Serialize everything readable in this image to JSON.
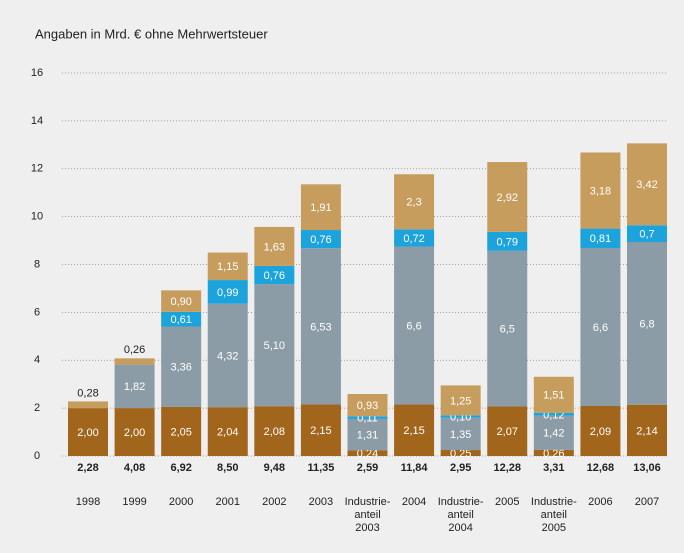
{
  "chart_data": {
    "type": "stacked_bar",
    "title": "Angaben in Mrd. € ohne Mehrwertsteuer",
    "categories": [
      "1998",
      "1999",
      "2000",
      "2001",
      "2002",
      "2003",
      "Industrie-\nanteil\n2003",
      "2004",
      "Industrie-\nanteil\n2004",
      "2005",
      "Industrie-\nanteil\n2005",
      "2006",
      "2007"
    ],
    "series": [
      {
        "color": "#a1651c",
        "values": [
          2.0,
          2.0,
          2.05,
          2.04,
          2.08,
          2.15,
          0.24,
          2.15,
          0.25,
          2.07,
          0.26,
          2.09,
          2.14
        ],
        "value_labels": [
          "2,00",
          "2,00",
          "2,05",
          "2,04",
          "2,08",
          "2,15",
          "0,24",
          "2,15",
          "0,25",
          "2,07",
          "0,26",
          "2,09",
          "2,14"
        ]
      },
      {
        "color": "#8c9ca6",
        "values": [
          null,
          1.82,
          3.36,
          4.32,
          5.1,
          6.53,
          1.31,
          6.6,
          1.35,
          6.5,
          1.42,
          6.6,
          6.8
        ],
        "value_labels": [
          null,
          "1,82",
          "3,36",
          "4,32",
          "5,10",
          "6,53",
          "1,31",
          "6,6",
          "1,35",
          "6,5",
          "1,42",
          "6,6",
          "6,8"
        ]
      },
      {
        "color": "#1ca3dc",
        "values": [
          null,
          null,
          0.61,
          0.99,
          0.76,
          0.76,
          0.11,
          0.72,
          0.1,
          0.79,
          0.12,
          0.81,
          0.7
        ],
        "value_labels": [
          null,
          null,
          "0,61",
          "0,99",
          "0,76",
          "0,76",
          "0,11",
          "0,72",
          "0,10",
          "0,79",
          "0,12",
          "0,81",
          "0,7"
        ]
      },
      {
        "color": "#c79d5e",
        "values": [
          0.28,
          0.26,
          0.9,
          1.15,
          1.63,
          1.91,
          0.93,
          2.3,
          1.25,
          2.92,
          1.51,
          3.18,
          3.42
        ],
        "value_labels": [
          "0,28",
          "0,26",
          "0,90",
          "1,15",
          "1,63",
          "1,91",
          "0,93",
          "2,3",
          "1,25",
          "2,92",
          "1,51",
          "3,18",
          "3,42"
        ]
      }
    ],
    "totals": [
      2.28,
      4.08,
      6.92,
      8.5,
      9.48,
      11.35,
      2.59,
      11.84,
      2.95,
      12.28,
      3.31,
      12.68,
      13.06
    ],
    "total_labels": [
      "2,28",
      "4,08",
      "6,92",
      "8,50",
      "9,48",
      "11,35",
      "2,59",
      "11,84",
      "2,95",
      "12,28",
      "3,31",
      "12,68",
      "13,06"
    ],
    "ylim": [
      0,
      16
    ],
    "yticks": [
      0,
      2,
      4,
      6,
      8,
      10,
      12,
      14,
      16
    ],
    "grid": true
  }
}
